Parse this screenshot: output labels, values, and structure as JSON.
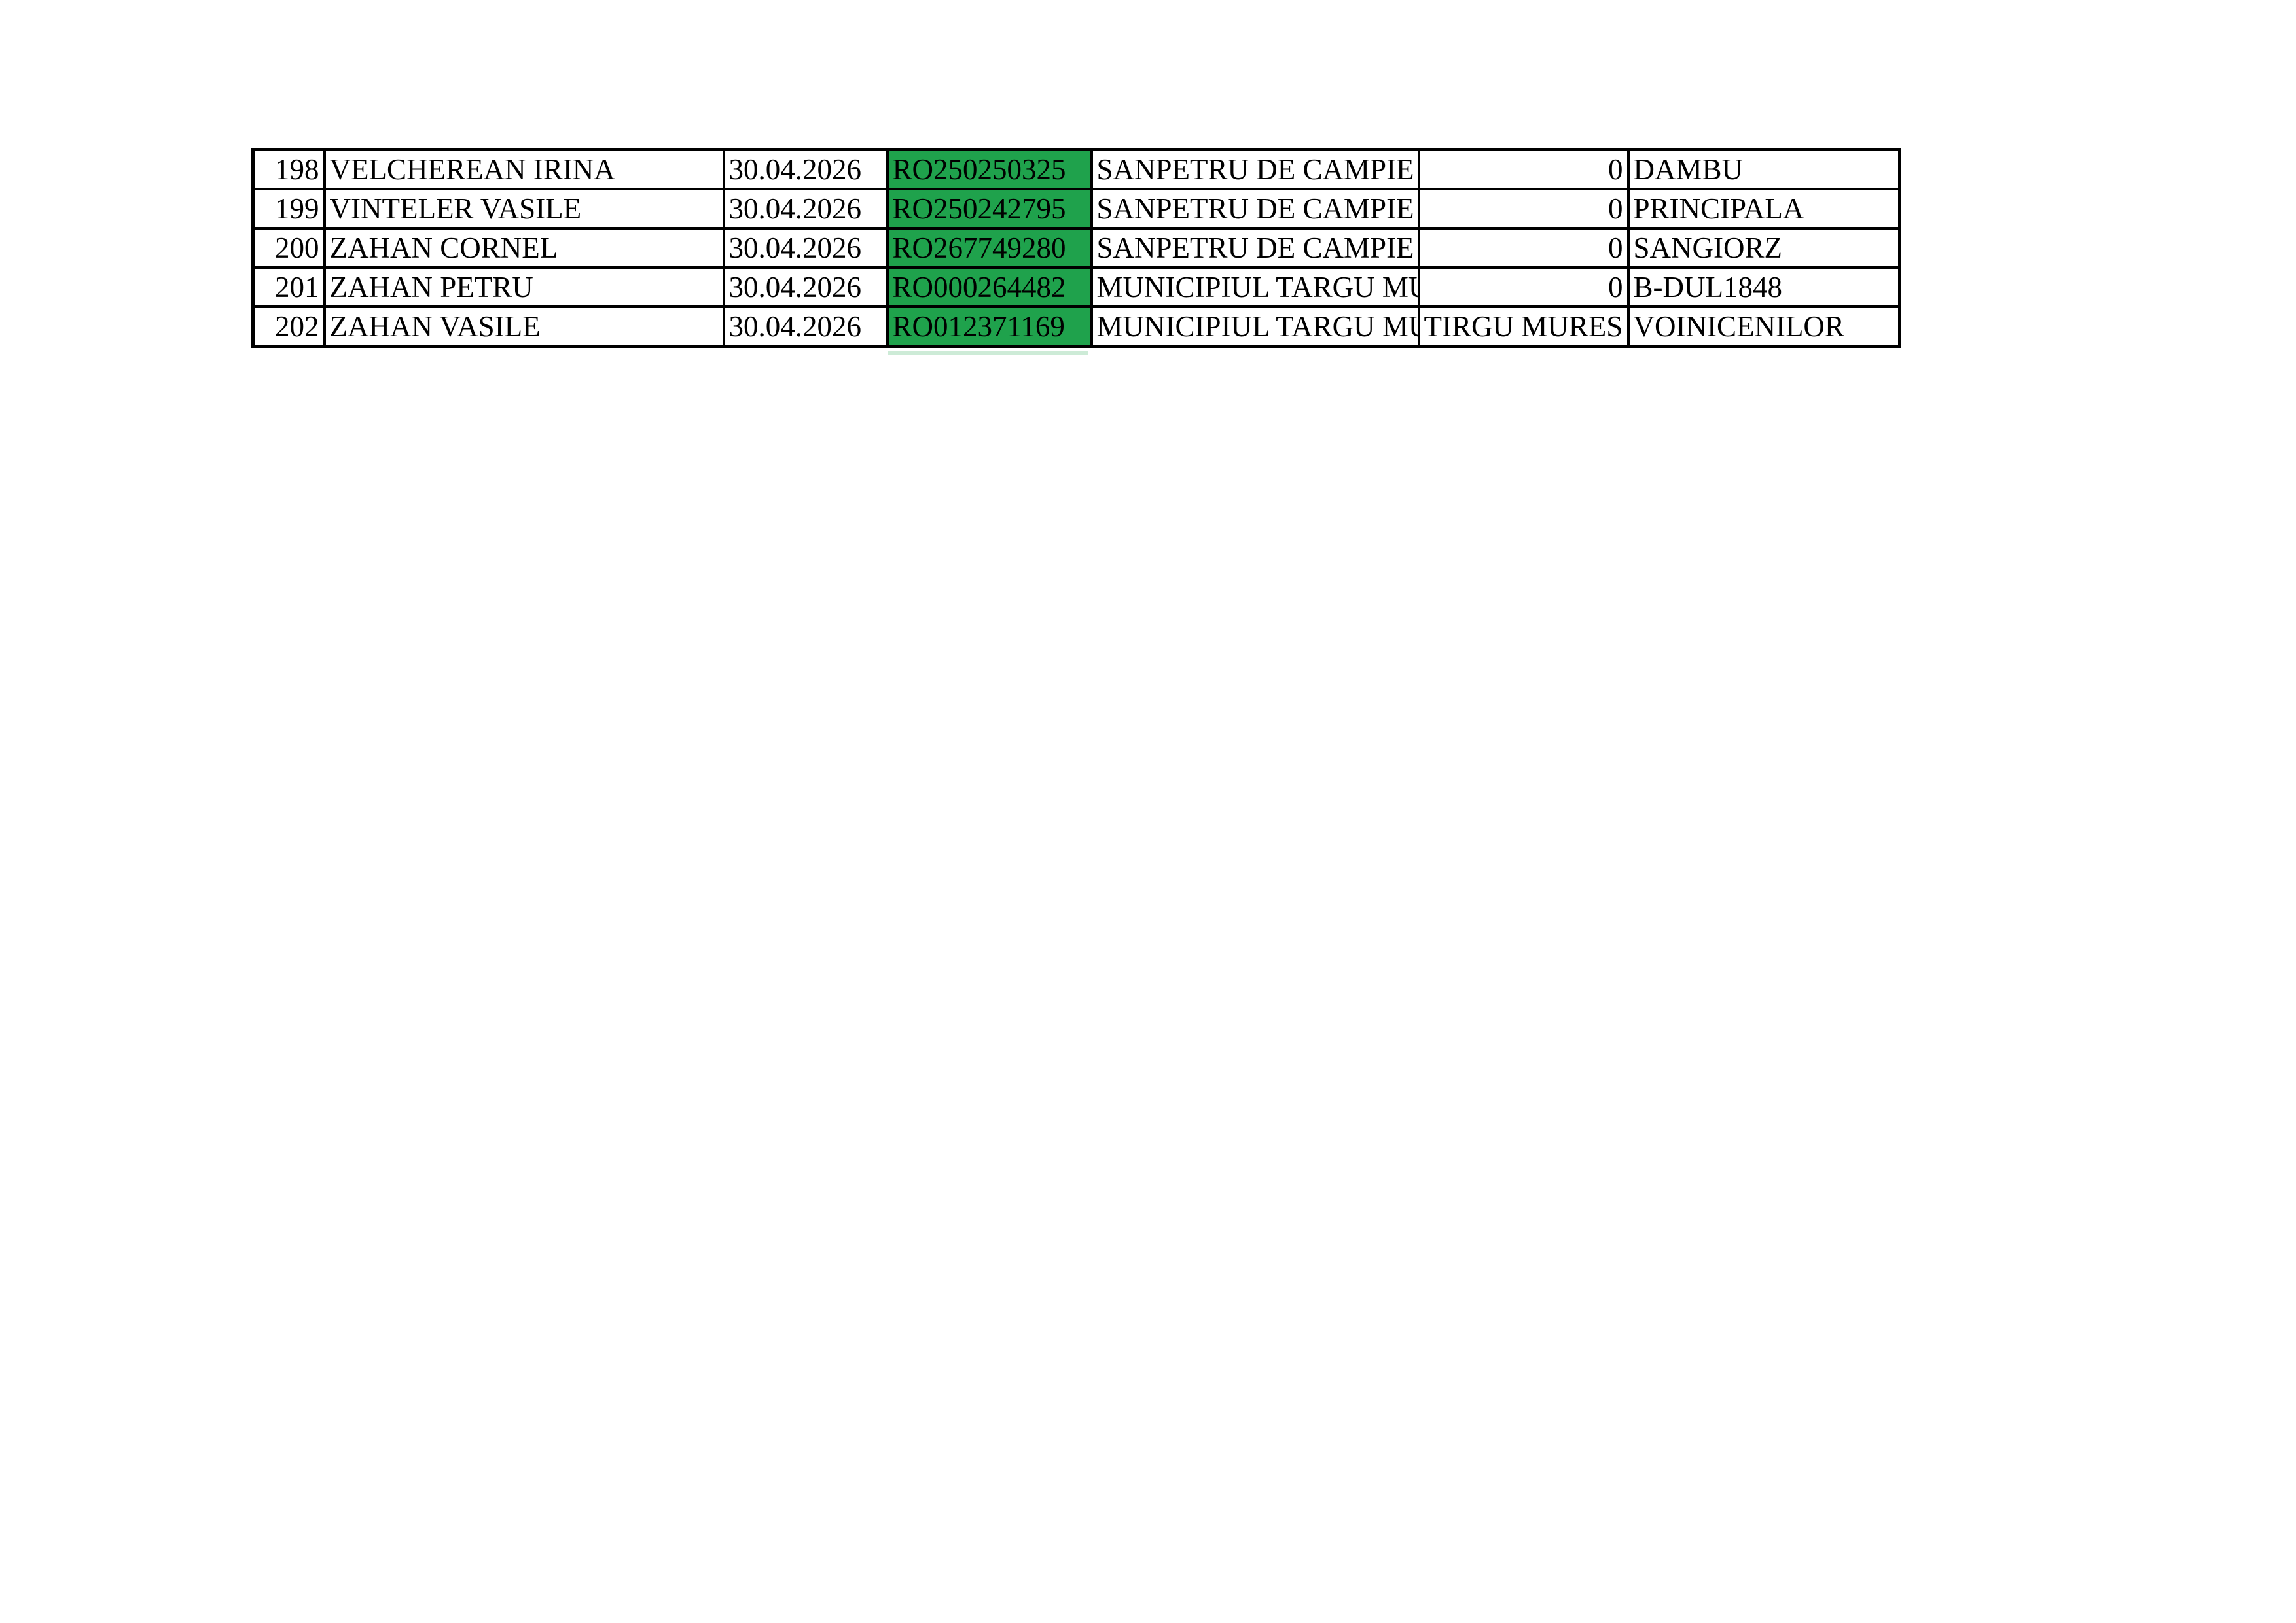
{
  "colors": {
    "page_background": "#ffffff",
    "table_border": "#000000",
    "code_fill_green": "#1fa24c",
    "artifact_strip_green": "#cdebd7",
    "text": "#000000"
  },
  "table": {
    "rows": [
      {
        "num": "198",
        "name": "VELCHEREAN IRINA",
        "date": "30.04.2026",
        "code": "RO250250325",
        "locality": "SANPETRU DE CAMPIE",
        "extra": "0",
        "street": "DAMBU"
      },
      {
        "num": "199",
        "name": "VINTELER VASILE",
        "date": "30.04.2026",
        "code": "RO250242795",
        "locality": "SANPETRU DE CAMPIE",
        "extra": "0",
        "street": "PRINCIPALA"
      },
      {
        "num": "200",
        "name": "ZAHAN CORNEL",
        "date": "30.04.2026",
        "code": "RO267749280",
        "locality": "SANPETRU DE CAMPIE",
        "extra": "0",
        "street": "SANGIORZ"
      },
      {
        "num": "201",
        "name": "ZAHAN PETRU",
        "date": "30.04.2026",
        "code": "RO000264482",
        "locality": "MUNICIPIUL TARGU MURES",
        "extra": "0",
        "street": "B-DUL1848"
      },
      {
        "num": "202",
        "name": "ZAHAN VASILE",
        "date": "30.04.2026",
        "code": "RO012371169",
        "locality": "MUNICIPIUL TARGU MURES",
        "extra": "TIRGU MURES",
        "street": "VOINICENILOR"
      }
    ]
  }
}
